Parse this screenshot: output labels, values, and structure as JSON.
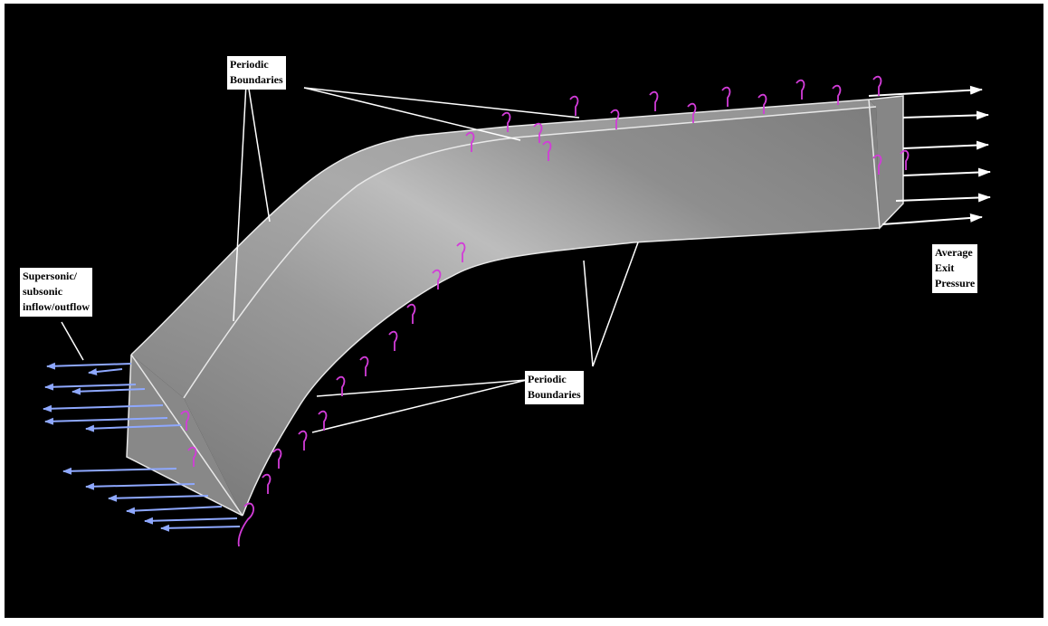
{
  "labels": {
    "top_periodic": {
      "line1": "Periodic",
      "line2": "Boundaries"
    },
    "inflow": {
      "line1": "Supersonic/",
      "line2": "subsonic",
      "line3": "inflow/outflow"
    },
    "exit": {
      "line1": "Average",
      "line2": "Exit",
      "line3": "Pressure"
    },
    "bottom_periodic": {
      "line1": "Periodic",
      "line2": "Boundaries"
    }
  },
  "colors": {
    "background": "#000000",
    "duct": "#8a8a8a",
    "inflow_arrows": "#8ea8ff",
    "periodic_markers": "#d23cd8",
    "exit_arrows": "#ffffff",
    "leader_lines": "#ffffff"
  }
}
